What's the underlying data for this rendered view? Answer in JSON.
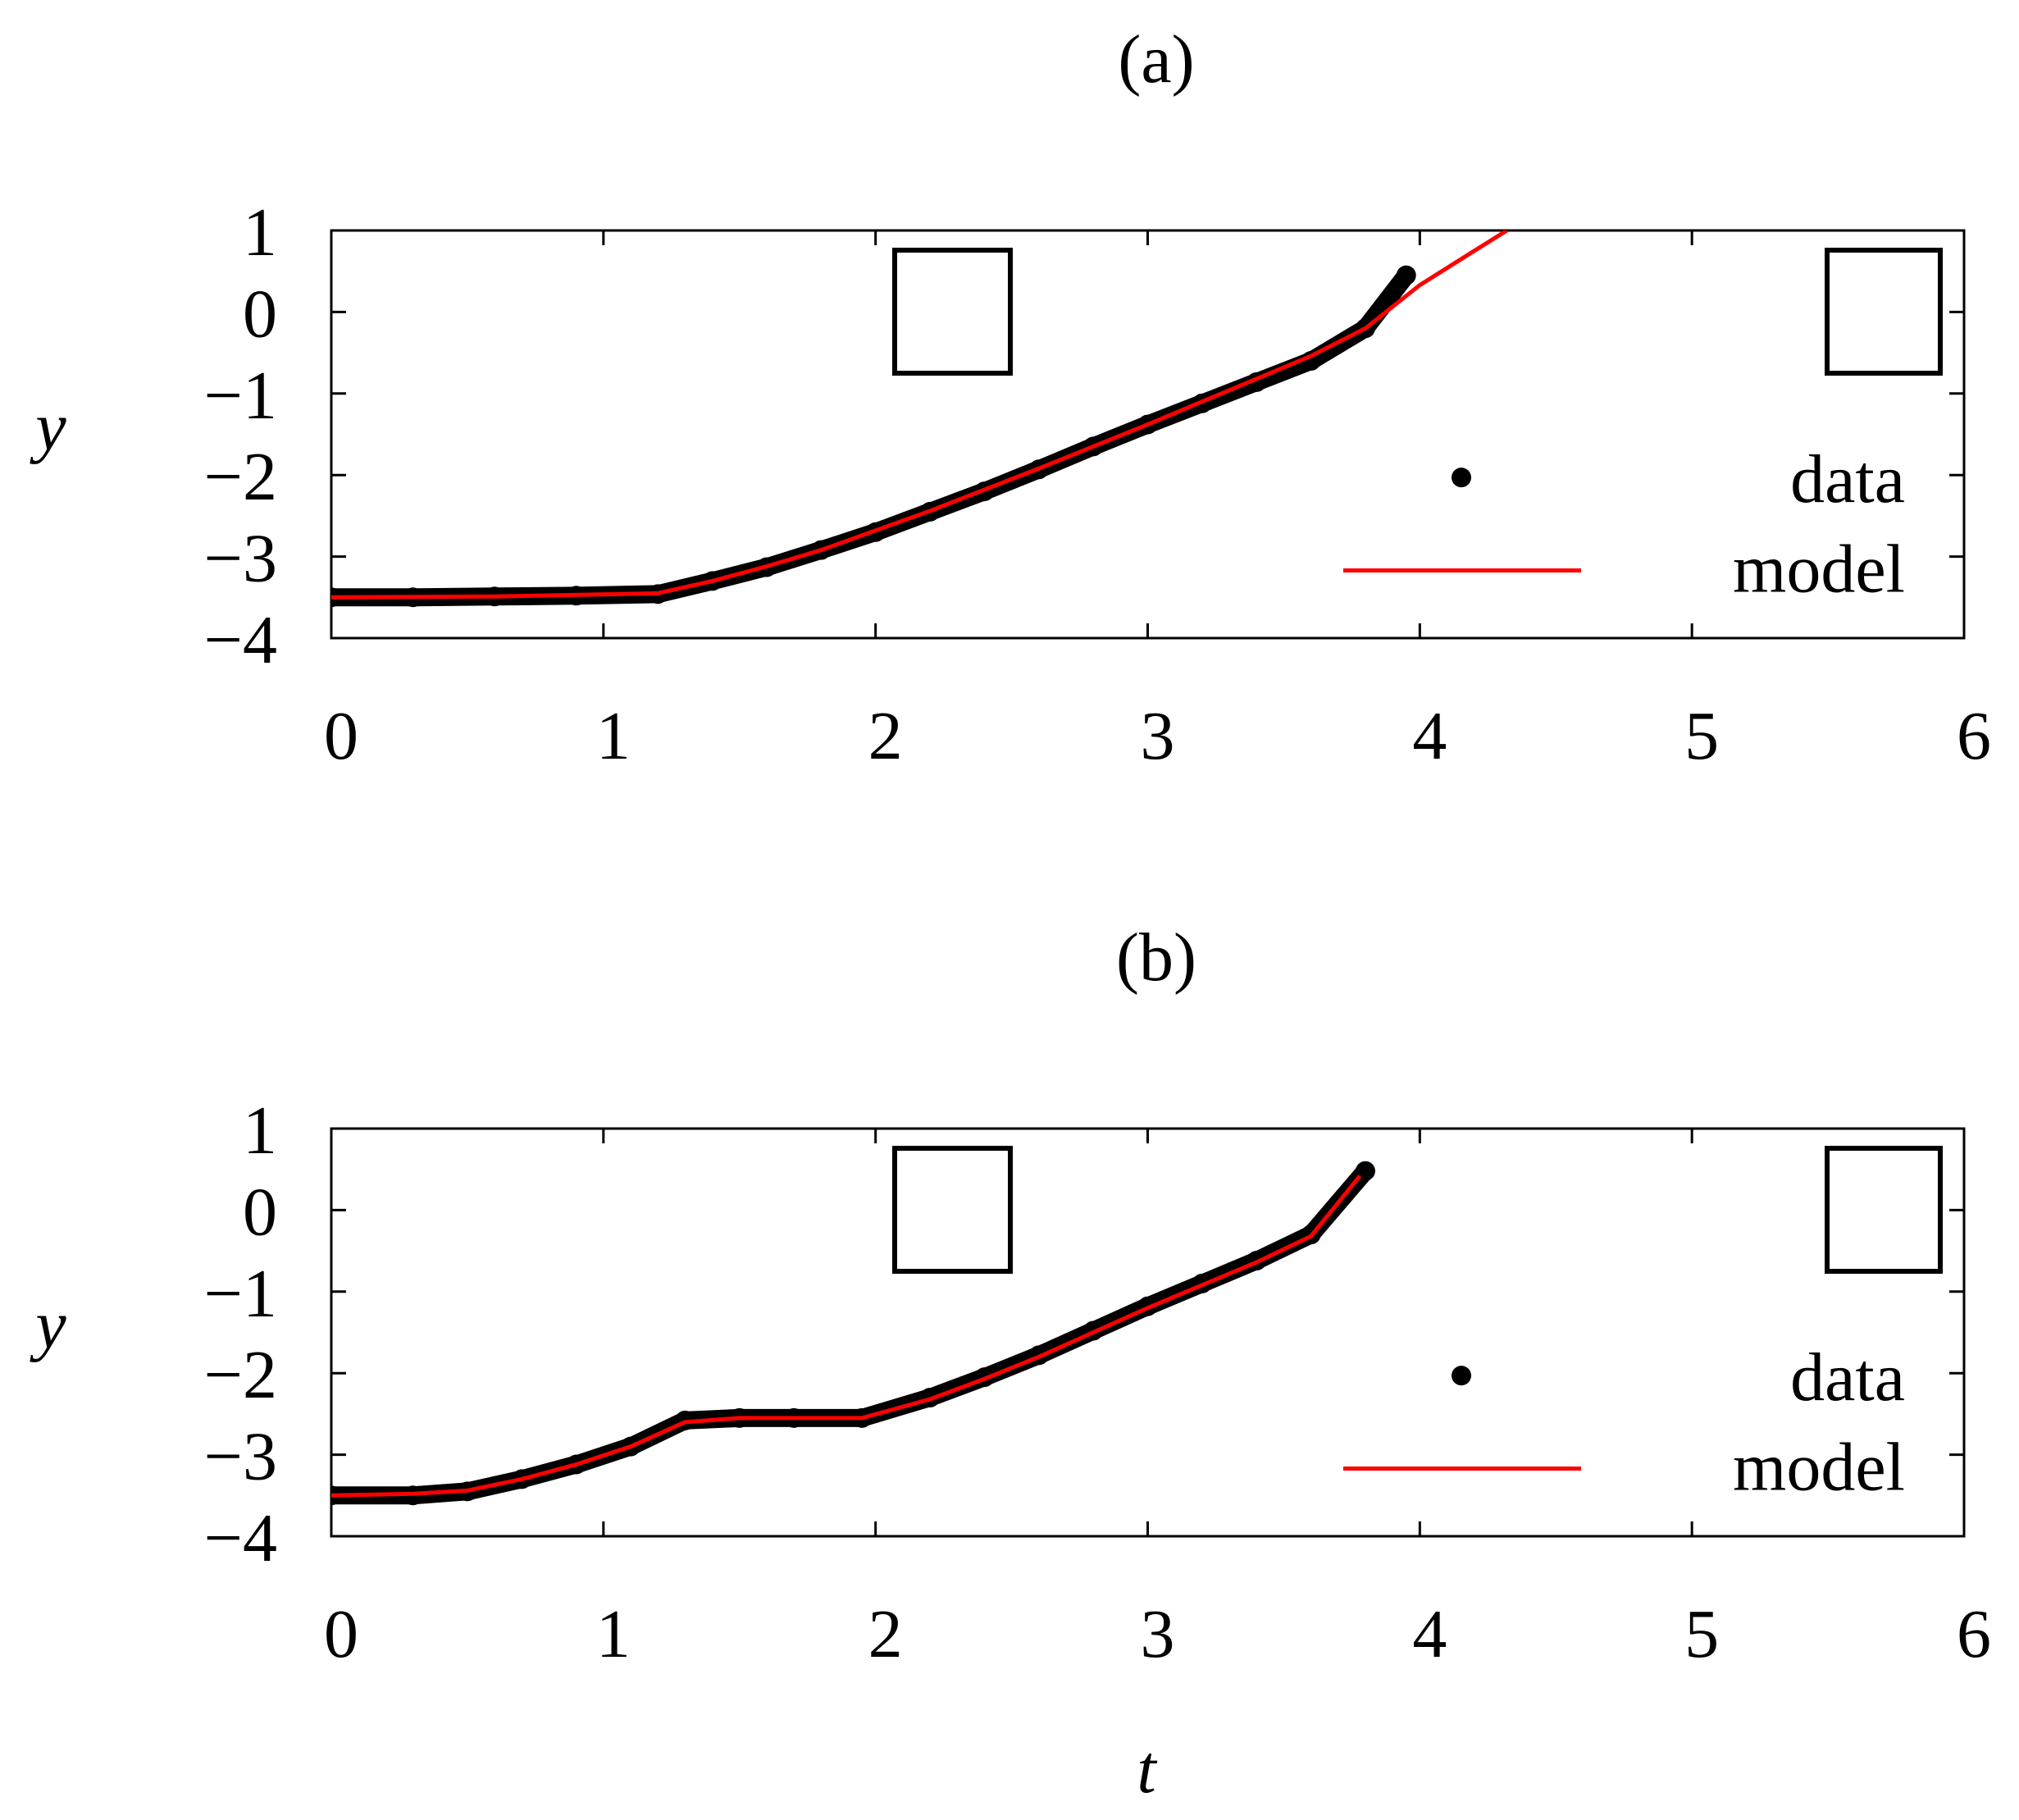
{
  "chart_data": [
    {
      "type": "line",
      "title": "(a)",
      "xlabel": "",
      "ylabel": "y",
      "xlim": [
        0,
        6
      ],
      "ylim": [
        -4,
        1
      ],
      "xticks": [
        "0",
        "1",
        "2",
        "3",
        "4",
        "5",
        "6"
      ],
      "yticks": [
        "1",
        "0",
        "−1",
        "−2",
        "−3",
        "−4"
      ],
      "legend": {
        "position": "bottom-right",
        "entries": [
          "data",
          "model"
        ]
      },
      "series": [
        {
          "name": "data",
          "style": "points",
          "color": "#000000",
          "x": [
            0,
            0.3,
            0.6,
            0.9,
            1.2,
            1.4,
            1.6,
            1.8,
            2.0,
            2.2,
            2.4,
            2.6,
            2.8,
            3.0,
            3.2,
            3.4,
            3.6,
            3.8,
            3.95
          ],
          "y": [
            -3.5,
            -3.5,
            -3.49,
            -3.48,
            -3.46,
            -3.3,
            -3.13,
            -2.92,
            -2.7,
            -2.45,
            -2.2,
            -1.93,
            -1.65,
            -1.38,
            -1.12,
            -0.86,
            -0.6,
            -0.2,
            0.45
          ]
        },
        {
          "name": "model",
          "style": "line",
          "color": "#ff0000",
          "x": [
            0,
            0.6,
            1.2,
            1.4,
            1.6,
            1.8,
            2.0,
            2.2,
            2.4,
            2.6,
            2.8,
            3.0,
            3.2,
            3.4,
            3.6,
            3.8,
            4.0,
            4.2,
            4.32
          ],
          "y": [
            -3.5,
            -3.49,
            -3.45,
            -3.3,
            -3.12,
            -2.92,
            -2.68,
            -2.44,
            -2.18,
            -1.92,
            -1.65,
            -1.38,
            -1.1,
            -0.82,
            -0.54,
            -0.2,
            0.33,
            0.75,
            1.0
          ]
        }
      ]
    },
    {
      "type": "line",
      "title": "(b)",
      "xlabel": "t",
      "ylabel": "y",
      "xlim": [
        0,
        6
      ],
      "ylim": [
        -4,
        1
      ],
      "xticks": [
        "0",
        "1",
        "2",
        "3",
        "4",
        "5",
        "6"
      ],
      "yticks": [
        "1",
        "0",
        "−1",
        "−2",
        "−3",
        "−4"
      ],
      "legend": {
        "position": "bottom-right",
        "entries": [
          "data",
          "model"
        ]
      },
      "series": [
        {
          "name": "data",
          "style": "points",
          "color": "#000000",
          "x": [
            0,
            0.3,
            0.5,
            0.7,
            0.9,
            1.1,
            1.3,
            1.5,
            1.7,
            1.95,
            2.2,
            2.4,
            2.6,
            2.8,
            3.0,
            3.2,
            3.4,
            3.6,
            3.8
          ],
          "y": [
            -3.5,
            -3.5,
            -3.45,
            -3.3,
            -3.12,
            -2.9,
            -2.58,
            -2.55,
            -2.55,
            -2.55,
            -2.3,
            -2.05,
            -1.78,
            -1.48,
            -1.18,
            -0.9,
            -0.62,
            -0.3,
            0.48
          ]
        },
        {
          "name": "model",
          "style": "line",
          "color": "#ff0000",
          "x": [
            0,
            0.3,
            0.5,
            0.7,
            0.9,
            1.1,
            1.3,
            1.5,
            1.7,
            1.95,
            2.2,
            2.4,
            2.6,
            2.8,
            3.0,
            3.2,
            3.4,
            3.6,
            3.78
          ],
          "y": [
            -3.5,
            -3.48,
            -3.44,
            -3.3,
            -3.12,
            -2.9,
            -2.6,
            -2.55,
            -2.55,
            -2.55,
            -2.32,
            -2.07,
            -1.8,
            -1.5,
            -1.2,
            -0.92,
            -0.64,
            -0.32,
            0.42
          ]
        }
      ]
    }
  ]
}
